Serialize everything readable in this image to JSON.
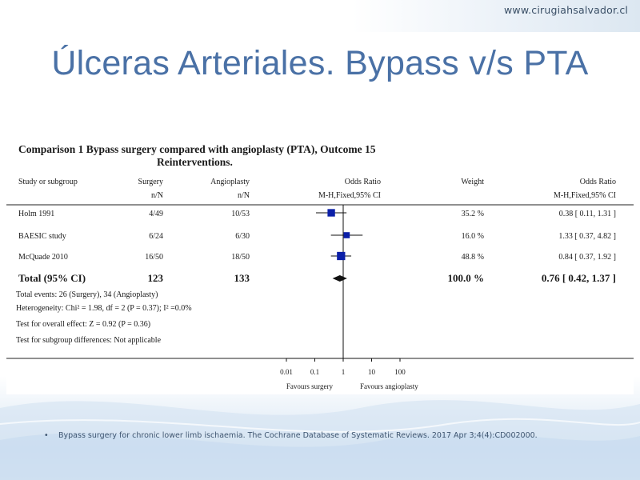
{
  "site_url": "www.cirugiahsalvador.cl",
  "slide_title": "Úlceras Arteriales. Bypass v/s PTA",
  "reference": "Bypass surgery for chronic lower limb ischaemia. The Cochrane Database of Systematic Reviews. 2017 Apr 3;4(4):CD002000.",
  "chart_data": {
    "type": "forest",
    "title": "Comparison 1 Bypass surgery compared with angioplasty (PTA), Outcome 15",
    "title_line2": "Reinterventions.",
    "columns": {
      "study": "Study or subgroup",
      "surgery": "Surgery",
      "surgery_sub": "n/N",
      "angio": "Angioplasty",
      "angio_sub": "n/N",
      "or_plot": "Odds Ratio",
      "or_plot_sub": "M-H,Fixed,95% CI",
      "weight": "Weight",
      "or_text": "Odds Ratio",
      "or_text_sub": "M-H,Fixed,95% CI"
    },
    "studies": [
      {
        "name": "Holm 1991",
        "surgery": "4/49",
        "angio": "10/53",
        "weight": "35.2 %",
        "or_text": "0.38 [ 0.11, 1.31 ]",
        "or": 0.38,
        "lo": 0.11,
        "hi": 1.31,
        "w": 35.2
      },
      {
        "name": "BAESIC study",
        "surgery": "6/24",
        "angio": "6/30",
        "weight": "16.0 %",
        "or_text": "1.33 [ 0.37, 4.82 ]",
        "or": 1.33,
        "lo": 0.37,
        "hi": 4.82,
        "w": 16.0
      },
      {
        "name": "McQuade 2010",
        "surgery": "16/50",
        "angio": "18/50",
        "weight": "48.8 %",
        "or_text": "0.84 [ 0.37, 1.92 ]",
        "or": 0.84,
        "lo": 0.37,
        "hi": 1.92,
        "w": 48.8
      }
    ],
    "total": {
      "label": "Total (95% CI)",
      "surgery": "123",
      "angio": "133",
      "weight": "100.0 %",
      "or_text": "0.76 [ 0.42, 1.37 ]",
      "or": 0.76,
      "lo": 0.42,
      "hi": 1.37
    },
    "notes": [
      "Total events: 26 (Surgery), 34 (Angioplasty)",
      "Heterogeneity: Chi² = 1.98, df = 2 (P = 0.37); I² =0.0%",
      "Test for overall effect: Z = 0.92 (P = 0.36)",
      "Test for subgroup differences: Not applicable"
    ],
    "x_scale": "log",
    "xlim": [
      0.01,
      100
    ],
    "x_ticks": [
      {
        "value": 0.01,
        "label": "0.01"
      },
      {
        "value": 0.1,
        "label": "0.1"
      },
      {
        "value": 1,
        "label": "1"
      },
      {
        "value": 10,
        "label": "10"
      },
      {
        "value": 100,
        "label": "100"
      }
    ],
    "favours_left": "Favours surgery",
    "favours_right": "Favours angioplasty",
    "marker_color": "#0b1fa8"
  }
}
